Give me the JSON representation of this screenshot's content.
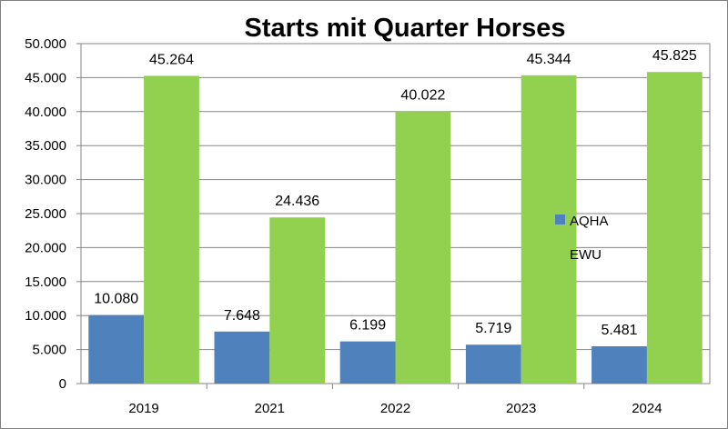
{
  "chart_data": {
    "type": "bar",
    "title": "Starts mit Quarter Horses",
    "categories": [
      "2019",
      "2021",
      "2022",
      "2023",
      "2024"
    ],
    "series": [
      {
        "name": "AQHA",
        "color": "#4F81BD",
        "values": [
          10080,
          7648,
          6199,
          5719,
          5481
        ],
        "labels": [
          "10.080",
          "7.648",
          "6.199",
          "5.719",
          "5.481"
        ]
      },
      {
        "name": "EWU",
        "color": "#92D050",
        "values": [
          45264,
          24436,
          40022,
          45344,
          45825
        ],
        "labels": [
          "45.264",
          "24.436",
          "40.022",
          "45.344",
          "45.825"
        ]
      }
    ],
    "ylim": [
      0,
      50000
    ],
    "yticks": [
      "0",
      "5.000",
      "10.000",
      "15.000",
      "20.000",
      "25.000",
      "30.000",
      "35.000",
      "40.000",
      "45.000",
      "50.000"
    ],
    "xlabel": "",
    "ylabel": "",
    "grid": true,
    "legend": "right"
  }
}
